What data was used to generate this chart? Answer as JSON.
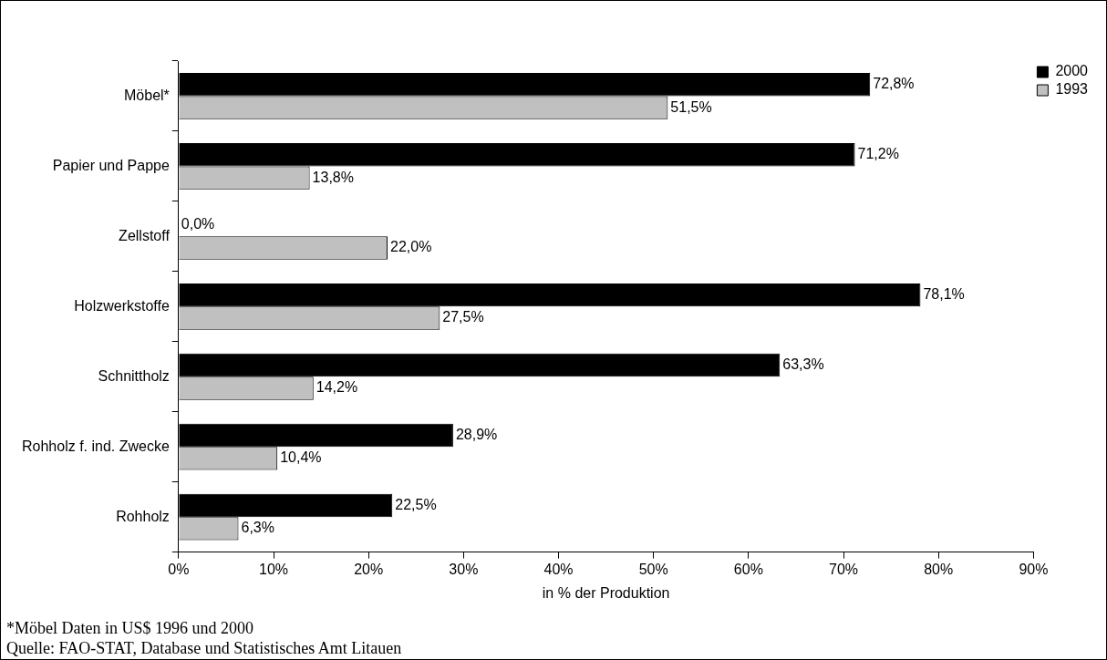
{
  "chart_data": {
    "type": "bar",
    "orientation": "horizontal",
    "xlabel": "in % der Produktion",
    "categories": [
      "Möbel*",
      "Papier und Pappe",
      "Zellstoff",
      "Holzwerkstoffe",
      "Schnittholz",
      "Rohholz f. ind. Zwecke",
      "Rohholz"
    ],
    "series": [
      {
        "name": "2000",
        "color": "#000000",
        "values": [
          72.8,
          71.2,
          0.0,
          78.1,
          63.3,
          28.9,
          22.5
        ],
        "value_labels": [
          "72,8%",
          "71,2%",
          "0,0%",
          "78,1%",
          "63,3%",
          "28,9%",
          "22,5%"
        ]
      },
      {
        "name": "1993",
        "color": "#c0c0c0",
        "values": [
          51.5,
          13.8,
          22.0,
          27.5,
          14.2,
          10.4,
          6.3
        ],
        "value_labels": [
          "51,5%",
          "13,8%",
          "22,0%",
          "27,5%",
          "14,2%",
          "10,4%",
          "6,3%"
        ]
      }
    ],
    "xlim": [
      0,
      90
    ],
    "xticks": [
      {
        "value": 0,
        "label": "0%"
      },
      {
        "value": 10,
        "label": "10%"
      },
      {
        "value": 20,
        "label": "20%"
      },
      {
        "value": 30,
        "label": "30%"
      },
      {
        "value": 40,
        "label": "40%"
      },
      {
        "value": 50,
        "label": "50%"
      },
      {
        "value": 60,
        "label": "60%"
      },
      {
        "value": 70,
        "label": "70%"
      },
      {
        "value": 80,
        "label": "80%"
      },
      {
        "value": 90,
        "label": "90%"
      }
    ],
    "grid": false,
    "legend": "top right",
    "annotations": [
      "*Möbel Daten in US$ 1996 und 2000",
      "Quelle: FAO-STAT, Database und Statistisches Amt Litauen"
    ]
  }
}
